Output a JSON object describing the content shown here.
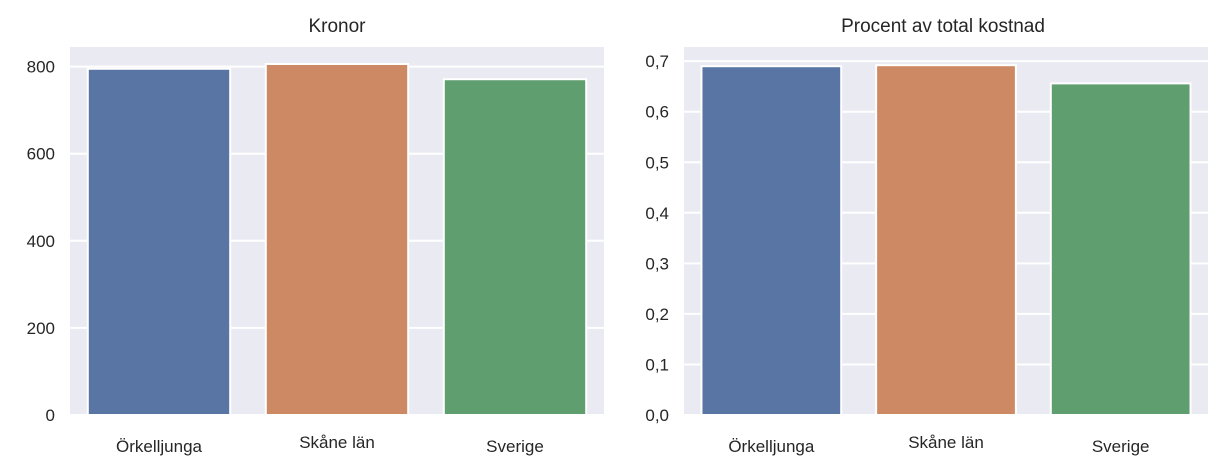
{
  "chart_data": [
    {
      "type": "bar",
      "title": "Kronor",
      "categories": [
        "Örkelljunga",
        "Skåne län",
        "Sverige"
      ],
      "values": [
        795,
        806,
        771
      ],
      "yticks": [
        0,
        200,
        400,
        600,
        800
      ],
      "ytick_labels": [
        "0",
        "200",
        "400",
        "600",
        "800"
      ],
      "ylim": [
        0,
        845
      ],
      "grid": true,
      "colors": [
        "#5875a4",
        "#cc8963",
        "#5f9e6e"
      ]
    },
    {
      "type": "bar",
      "title": "Procent av total kostnad",
      "categories": [
        "Örkelljunga",
        "Skåne län",
        "Sverige"
      ],
      "values": [
        0.69,
        0.692,
        0.656
      ],
      "yticks": [
        0.0,
        0.1,
        0.2,
        0.3,
        0.4,
        0.5,
        0.6,
        0.7
      ],
      "ytick_labels": [
        "0,0",
        "0,1",
        "0,2",
        "0,3",
        "0,4",
        "0,5",
        "0,6",
        "0,7"
      ],
      "ylim": [
        0,
        0.728
      ],
      "grid": true,
      "colors": [
        "#5875a4",
        "#cc8963",
        "#5f9e6e"
      ]
    }
  ]
}
